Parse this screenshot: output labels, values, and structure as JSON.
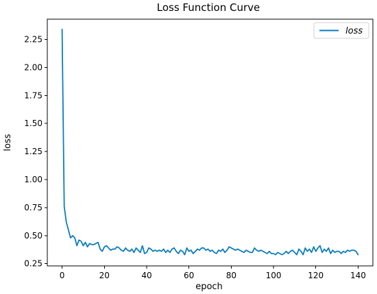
{
  "chart_data": {
    "type": "line",
    "title": "Loss Function Curve",
    "xlabel": "epoch",
    "ylabel": "loss",
    "xlim": [
      -7,
      147
    ],
    "ylim": [
      0.23,
      2.43
    ],
    "xticks": [
      0,
      20,
      40,
      60,
      80,
      100,
      120,
      140
    ],
    "xtick_labels": [
      "0",
      "20",
      "40",
      "60",
      "80",
      "100",
      "120",
      "140"
    ],
    "yticks": [
      0.25,
      0.5,
      0.75,
      1.0,
      1.25,
      1.5,
      1.75,
      2.0,
      2.25
    ],
    "ytick_labels": [
      "0.25",
      "0.50",
      "0.75",
      "1.00",
      "1.25",
      "1.50",
      "1.75",
      "2.00",
      "2.25"
    ],
    "grid": false,
    "legend_position": "top-right",
    "series": [
      {
        "name": "loss",
        "color": "#0b7dbe",
        "x": [
          0,
          1,
          2,
          3,
          4,
          5,
          6,
          7,
          8,
          9,
          10,
          11,
          12,
          13,
          14,
          15,
          16,
          17,
          18,
          19,
          20,
          21,
          22,
          23,
          24,
          25,
          26,
          27,
          28,
          29,
          30,
          31,
          32,
          33,
          34,
          35,
          36,
          37,
          38,
          39,
          40,
          41,
          42,
          43,
          44,
          45,
          46,
          47,
          48,
          49,
          50,
          51,
          52,
          53,
          54,
          55,
          56,
          57,
          58,
          59,
          60,
          61,
          62,
          63,
          64,
          65,
          66,
          67,
          68,
          69,
          70,
          71,
          72,
          73,
          74,
          75,
          76,
          77,
          78,
          79,
          80,
          81,
          82,
          83,
          84,
          85,
          86,
          87,
          88,
          89,
          90,
          91,
          92,
          93,
          94,
          95,
          96,
          97,
          98,
          99,
          100,
          101,
          102,
          103,
          104,
          105,
          106,
          107,
          108,
          109,
          110,
          111,
          112,
          113,
          114,
          115,
          116,
          117,
          118,
          119,
          120,
          121,
          122,
          123,
          124,
          125,
          126,
          127,
          128,
          129,
          130,
          131,
          132,
          133,
          134,
          135,
          136,
          137,
          138,
          139,
          140
        ],
        "y": [
          2.34,
          0.76,
          0.62,
          0.55,
          0.48,
          0.5,
          0.48,
          0.41,
          0.46,
          0.45,
          0.41,
          0.44,
          0.4,
          0.43,
          0.42,
          0.42,
          0.43,
          0.44,
          0.38,
          0.36,
          0.4,
          0.41,
          0.39,
          0.37,
          0.38,
          0.38,
          0.4,
          0.39,
          0.37,
          0.36,
          0.39,
          0.37,
          0.36,
          0.38,
          0.35,
          0.39,
          0.37,
          0.35,
          0.41,
          0.34,
          0.35,
          0.39,
          0.38,
          0.36,
          0.37,
          0.36,
          0.37,
          0.36,
          0.38,
          0.35,
          0.37,
          0.35,
          0.38,
          0.39,
          0.36,
          0.34,
          0.37,
          0.36,
          0.33,
          0.39,
          0.36,
          0.37,
          0.34,
          0.36,
          0.38,
          0.37,
          0.39,
          0.39,
          0.37,
          0.38,
          0.36,
          0.37,
          0.35,
          0.34,
          0.37,
          0.36,
          0.38,
          0.35,
          0.37,
          0.4,
          0.39,
          0.38,
          0.37,
          0.38,
          0.37,
          0.36,
          0.35,
          0.37,
          0.36,
          0.35,
          0.35,
          0.39,
          0.37,
          0.36,
          0.37,
          0.36,
          0.35,
          0.34,
          0.36,
          0.34,
          0.34,
          0.33,
          0.35,
          0.34,
          0.33,
          0.34,
          0.36,
          0.34,
          0.36,
          0.37,
          0.35,
          0.33,
          0.38,
          0.36,
          0.33,
          0.39,
          0.36,
          0.38,
          0.35,
          0.4,
          0.36,
          0.39,
          0.41,
          0.35,
          0.38,
          0.36,
          0.39,
          0.34,
          0.37,
          0.35,
          0.36,
          0.36,
          0.34,
          0.36,
          0.35,
          0.37,
          0.36,
          0.37,
          0.37,
          0.36,
          0.33
        ]
      }
    ]
  }
}
